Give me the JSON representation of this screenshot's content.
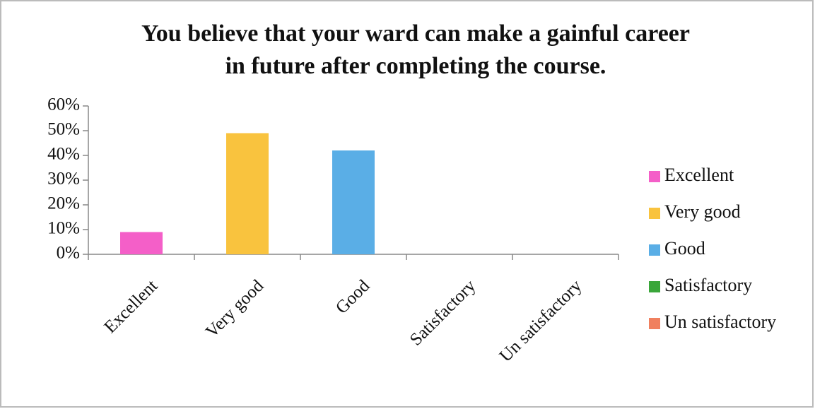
{
  "chart_data": {
    "type": "bar",
    "title": [
      "You believe that your ward can make a gainful career",
      "in future after completing the course."
    ],
    "categories": [
      "Excellent",
      "Very good",
      "Good",
      "Satisfactory",
      "Un satisfactory"
    ],
    "values": [
      9,
      49,
      42,
      0,
      0
    ],
    "colors": [
      "#f45fc8",
      "#f9c33e",
      "#5aaee6",
      "#3aa63a",
      "#f0805f"
    ],
    "ylim": [
      0,
      60
    ],
    "yticks": [
      {
        "value": 0,
        "label": "0%"
      },
      {
        "value": 10,
        "label": "10%"
      },
      {
        "value": 20,
        "label": "20%"
      },
      {
        "value": 30,
        "label": "30%"
      },
      {
        "value": 40,
        "label": "40%"
      },
      {
        "value": 50,
        "label": "50%"
      },
      {
        "value": 60,
        "label": "60%"
      }
    ],
    "legend": "right"
  }
}
